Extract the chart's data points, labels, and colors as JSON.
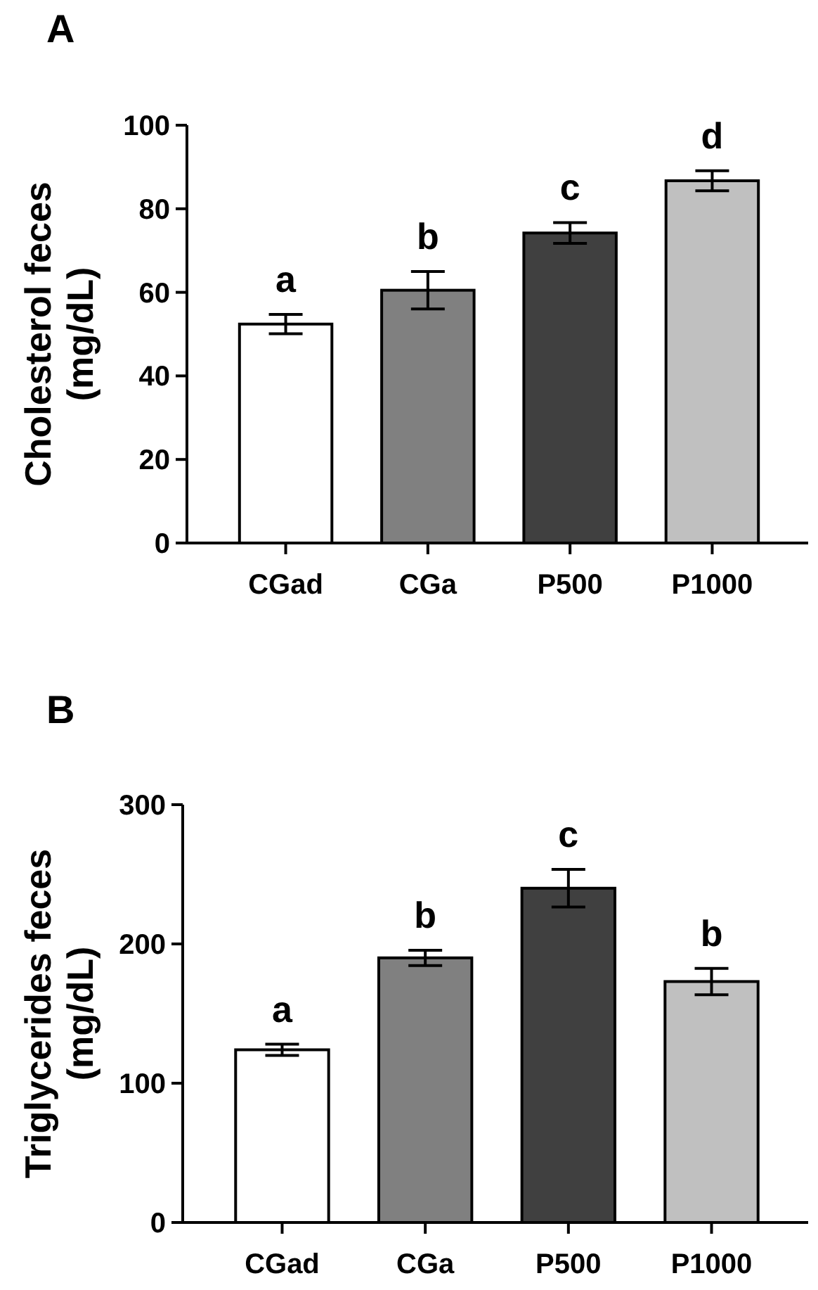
{
  "chart_data": [
    {
      "type": "bar",
      "title": "A",
      "ylabel": "Cholesterol feces\n(mg/dL)",
      "categories": [
        "CGad",
        "CGa",
        "P500",
        "P1000"
      ],
      "values": [
        52.4,
        60.5,
        74.2,
        86.7
      ],
      "errors": [
        2.3,
        4.5,
        2.5,
        2.4
      ],
      "colors": [
        "#ffffff",
        "#808080",
        "#404040",
        "#c0c0c0"
      ],
      "ylim": [
        0,
        100
      ],
      "yticks": [
        0,
        20,
        40,
        60,
        80,
        100
      ],
      "grid": false,
      "annotations": [
        "a",
        "b",
        "c",
        "d"
      ]
    },
    {
      "type": "bar",
      "title": "B",
      "ylabel": "Triglycerides feces\n(mg/dL)",
      "categories": [
        "CGad",
        "CGa",
        "P500",
        "P1000"
      ],
      "values": [
        124,
        190,
        240,
        173
      ],
      "errors": [
        4,
        5.5,
        13.5,
        9.5
      ],
      "colors": [
        "#ffffff",
        "#808080",
        "#404040",
        "#c0c0c0"
      ],
      "ylim": [
        0,
        300
      ],
      "yticks": [
        0,
        100,
        200,
        300
      ],
      "grid": false,
      "annotations": [
        "a",
        "b",
        "c",
        "b"
      ]
    }
  ]
}
